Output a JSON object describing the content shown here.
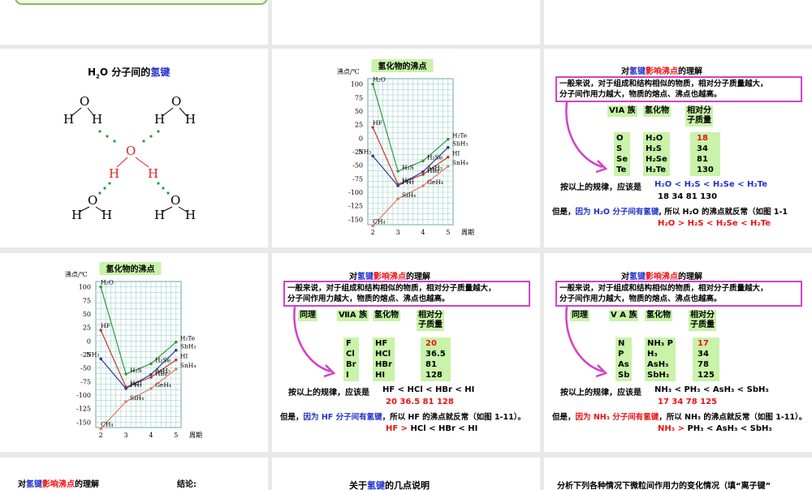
{
  "slide4": {
    "title_prefix": "H",
    "title_sub": "2",
    "title_mid": "O 分子间的",
    "title_hl": "氢键",
    "atom_O": "O",
    "atom_H": "H"
  },
  "chart": {
    "title": "氢化物的沸点",
    "ylabel": "沸点/℃",
    "xlabel": "周期"
  },
  "chart_data": {
    "type": "line",
    "title": "氢化物的沸点",
    "ylabel": "沸点/℃",
    "xlabel": "周期",
    "x": [
      2,
      3,
      4,
      5
    ],
    "ylim": [
      -160,
      110
    ],
    "yticks": [
      100,
      75,
      50,
      25,
      0,
      -25,
      -50,
      -75,
      -100,
      -125,
      -150
    ],
    "xticks": [
      2,
      3,
      4,
      5
    ],
    "grid": true,
    "series": [
      {
        "group": "VIA",
        "color": "#2a9a3a",
        "labels": [
          "H₂O",
          "H₂S",
          "H₂Se",
          "H₂Te"
        ],
        "values": [
          100,
          -61,
          -42,
          -2
        ]
      },
      {
        "group": "VIIA",
        "color": "#c0392b",
        "labels": [
          "HF",
          "HCl",
          "HBr",
          "HI"
        ],
        "values": [
          20,
          -85,
          -67,
          -35
        ]
      },
      {
        "group": "VA",
        "color": "#2c3e8f",
        "labels": [
          "NH₃",
          "PH₃",
          "AsH₃",
          "SbH₃"
        ],
        "values": [
          -33,
          -88,
          -62,
          -17
        ]
      },
      {
        "group": "IVA",
        "color": "#e07a5f",
        "labels": [
          "CH₄",
          "SiH₄",
          "GeH₄",
          "SnH₄"
        ],
        "values": [
          -162,
          -112,
          -88,
          -52
        ]
      }
    ]
  },
  "rule": {
    "line1": "一般来说，对于组成和结构相似的物质，相对分子质量越大，",
    "line2": "分子间作用力越大，物质的熔点、沸点也越高。"
  },
  "heading": {
    "prefix": "对",
    "hl1": "氢键",
    "hl2": "影响沸点",
    "suffix": "的理解"
  },
  "via": {
    "head_group": "VIA 族",
    "head_cmp": "氢化物",
    "head_mass1": "相对分",
    "head_mass2": "子质量",
    "elements": [
      "O",
      "S",
      "Se",
      "Te"
    ],
    "compounds": [
      "H₂O",
      "H₂S",
      "H₂Se",
      "H₂Te"
    ],
    "masses": [
      "18",
      "34",
      "81",
      "130"
    ],
    "rule_prefix": "按以上的规律，应该是",
    "order": "H₂O  <  H₂S  <  H₂Se  < H₂Te",
    "order_nums": "18      34      81          130",
    "but": "但是，",
    "but_hl": "因为 H₂O 分子间有氢键",
    "but_rest": ", 所以 H₂O 的沸点就反常（如图 1-1",
    "final": "H₂O  >  H₂S  < H₂Se  < H₂Te"
  },
  "viia": {
    "same": "同理",
    "head_group": "ⅦA 族",
    "head_cmp": "氢化物",
    "head_mass1": "相对分",
    "head_mass2": "子质量",
    "elements": [
      "F",
      "Cl",
      "Br",
      "I"
    ],
    "compounds": [
      "HF",
      "HCl",
      "HBr",
      "HI"
    ],
    "masses": [
      "20",
      "36.5",
      "81",
      "128"
    ],
    "rule_prefix": "按以上的规律，应该是",
    "order": "HF  <  HCl  <  HBr  <  HI",
    "order_nums": "20     36.5      81        128",
    "but": "但是，",
    "but_hl": "因为 HF 分子间有氢键",
    "but_rest": "，所以 HF 的沸点就反常（如图 1-11）。",
    "final_hl": "HF  >",
    "final_rest": " HCl  <  HBr  <  HI"
  },
  "va": {
    "same": "同理",
    "head_group": "V A 族",
    "head_cmp": "氢化物",
    "head_mass1": "相对分",
    "head_mass2": "子质量",
    "elements": [
      "N",
      "P",
      "As",
      "Sb"
    ],
    "compounds": [
      "NH₃ P",
      "H₃",
      "AsH₃",
      "SbH₃"
    ],
    "masses": [
      "17",
      "34",
      "78",
      "125"
    ],
    "rule_prefix": "按以上的规律，应该是",
    "order": "NH₃ < PH₃  <  AsH₃  <  SbH₃",
    "order_nums": "17      34       78          125",
    "but": "但是，",
    "but_hl": "因为 NH₃ 分子间有氢键",
    "but_rest": "，所以 NH₃ 的沸点就反常（如图 1-11）。",
    "final_hl": "NH₃ >",
    "final_rest": " PH₃  <  AsH₃  <  SbH₃"
  },
  "bottom": {
    "left_heading_prefix": "对",
    "left_hl1": "氢键",
    "left_hl2": "影响沸点",
    "left_suffix": "的理解",
    "conclusion": "结论:",
    "mid": "关于",
    "mid_hl": "氢键",
    "mid_rest": "的几点说明",
    "right": "分析下列各种情况下微粒间作用力的变化情况（填“离子键”"
  }
}
